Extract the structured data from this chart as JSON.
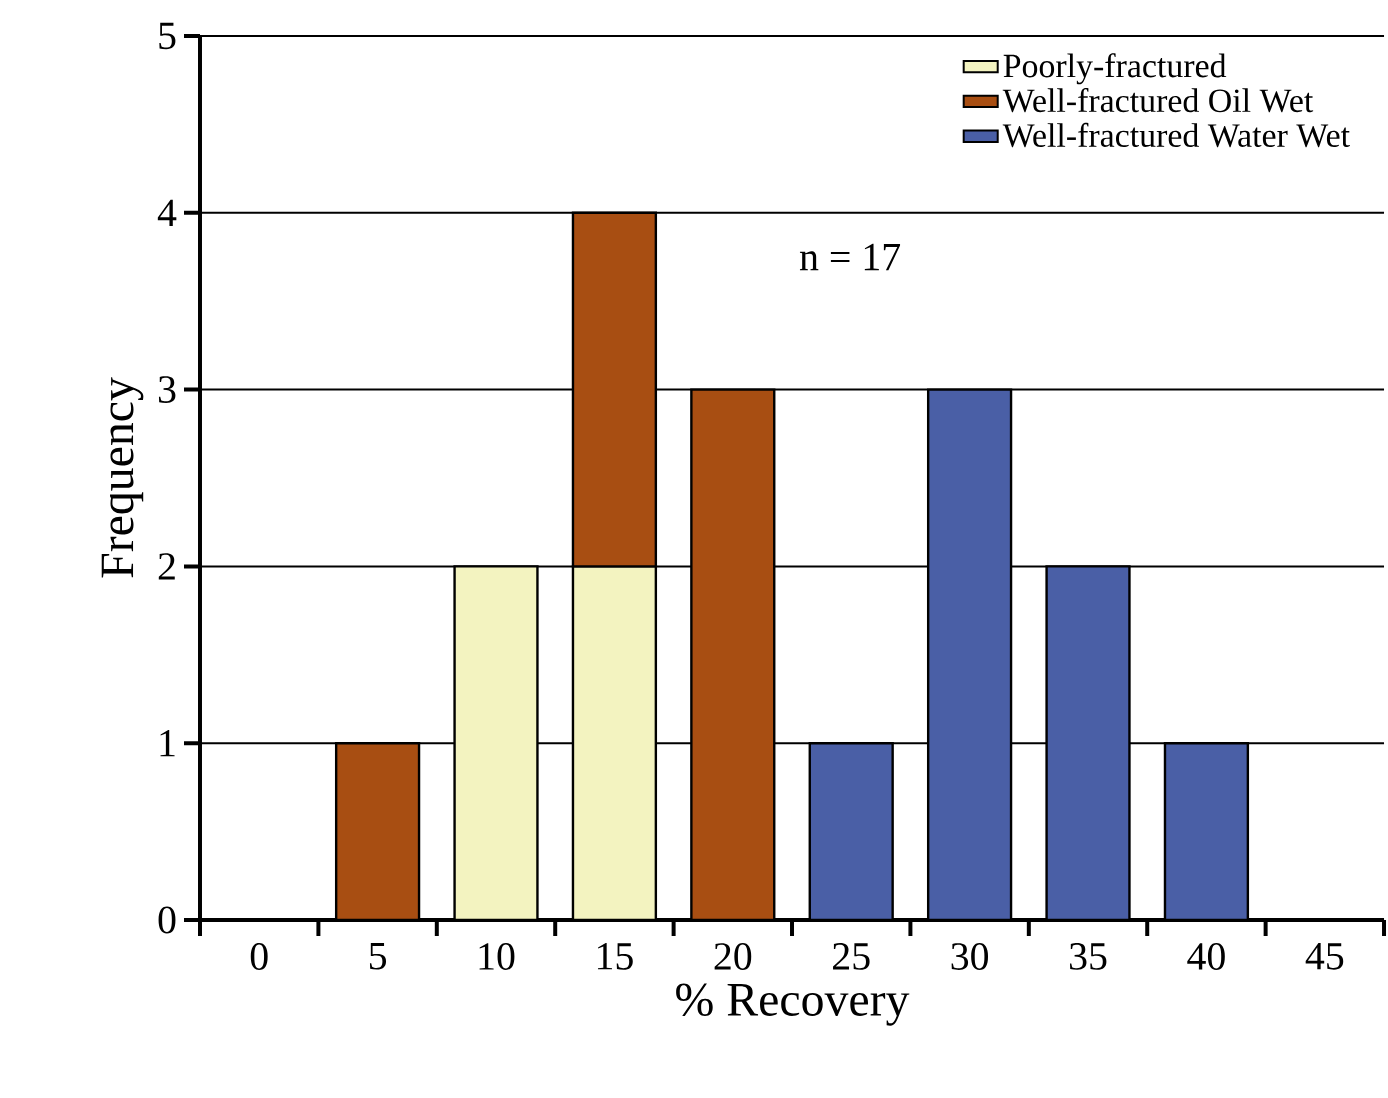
{
  "chart_data": {
    "type": "bar",
    "stacked": true,
    "categories": [
      "0",
      "5",
      "10",
      "15",
      "20",
      "25",
      "30",
      "35",
      "40",
      "45"
    ],
    "series": [
      {
        "name": "Poorly-fractured",
        "color": "#f3f3c0",
        "values": [
          null,
          null,
          2,
          2,
          null,
          null,
          null,
          null,
          null,
          null
        ]
      },
      {
        "name": "Well-fractured Oil Wet",
        "color": "#a84e12",
        "values": [
          null,
          1,
          null,
          2,
          3,
          null,
          null,
          null,
          null,
          null
        ]
      },
      {
        "name": "Well-fractured Water Wet",
        "color": "#4a5fa6",
        "values": [
          null,
          null,
          null,
          null,
          null,
          1,
          3,
          2,
          1,
          null
        ]
      }
    ],
    "xlabel": "% Recovery",
    "ylabel": "Frequency",
    "ylim": [
      0,
      5
    ],
    "yticks": [
      0,
      1,
      2,
      3,
      4,
      5
    ],
    "grid": "y",
    "legend": "top right",
    "annotations": [
      "n = 17"
    ]
  }
}
